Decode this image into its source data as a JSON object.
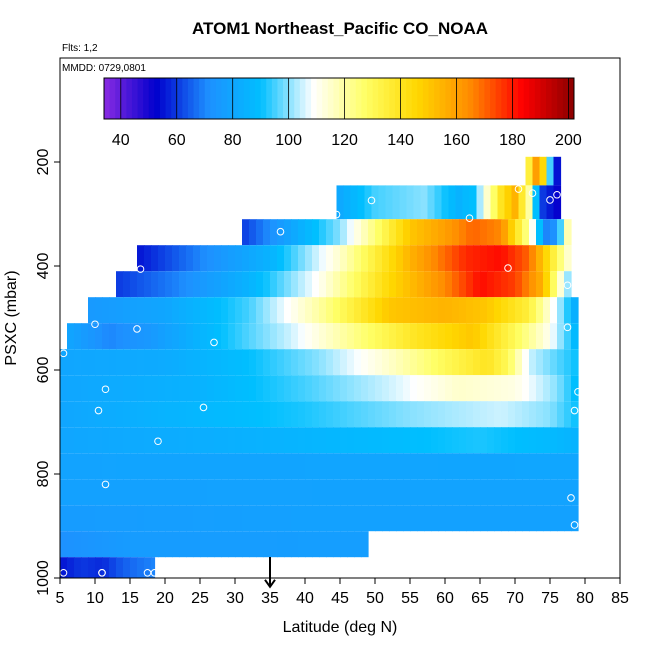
{
  "chart_data": {
    "type": "heatmap",
    "title": "ATOM1 Northeast_Pacific CO_NOAA",
    "info_flights": "Flts: 1,2",
    "info_dates": "MMDD: 0729,0801",
    "xlabel": "Latitude (deg N)",
    "ylabel": "PSXC (mbar)",
    "xlim": [
      5,
      85
    ],
    "ylim": [
      1000,
      0
    ],
    "x_ticks": [
      "5",
      "10",
      "15",
      "20",
      "25",
      "30",
      "35",
      "40",
      "45",
      "50",
      "55",
      "60",
      "65",
      "70",
      "75",
      "80",
      "85"
    ],
    "y_ticks": [
      "200",
      "400",
      "600",
      "800",
      "1000"
    ],
    "colorbar": {
      "range": [
        34,
        202
      ],
      "ticks": [
        "40",
        "60",
        "80",
        "100",
        "120",
        "140",
        "160",
        "180",
        "200"
      ],
      "colors": [
        "#8a2be2",
        "#0000cd",
        "#1e90ff",
        "#00bfff",
        "#ffffff",
        "#ffff66",
        "#ffd700",
        "#ff8c00",
        "#ff0000",
        "#8b0000"
      ]
    },
    "marker": {
      "latitude": 35,
      "pressure": 990
    },
    "rows": [
      {
        "p_top": 190,
        "p_bot": 245,
        "lat_start": 71.5,
        "lat_end": 76.5,
        "stops": [
          [
            71.5,
            120
          ],
          [
            72.5,
            150
          ],
          [
            73.5,
            170
          ],
          [
            74.5,
            120
          ],
          [
            75.5,
            70
          ],
          [
            76.5,
            40
          ]
        ]
      },
      {
        "p_top": 245,
        "p_bot": 310,
        "lat_start": 44.5,
        "lat_end": 76.5,
        "stops": [
          [
            44.5,
            80
          ],
          [
            50,
            95
          ],
          [
            57,
            100
          ],
          [
            62,
            85
          ],
          [
            64,
            90
          ],
          [
            68,
            140
          ],
          [
            70,
            155
          ],
          [
            72,
            120
          ],
          [
            74,
            60
          ],
          [
            76.5,
            50
          ]
        ]
      },
      {
        "p_top": 310,
        "p_bot": 360,
        "lat_start": 31,
        "lat_end": 78,
        "stops": [
          [
            31,
            60
          ],
          [
            38,
            80
          ],
          [
            45,
            100
          ],
          [
            50,
            125
          ],
          [
            55,
            150
          ],
          [
            60,
            160
          ],
          [
            64,
            170
          ],
          [
            68,
            165
          ],
          [
            72,
            120
          ],
          [
            75,
            60
          ],
          [
            78,
            130
          ]
        ]
      },
      {
        "p_top": 360,
        "p_bot": 410,
        "lat_start": 16,
        "lat_end": 78,
        "stops": [
          [
            16,
            55
          ],
          [
            25,
            70
          ],
          [
            35,
            85
          ],
          [
            45,
            115
          ],
          [
            55,
            155
          ],
          [
            63,
            178
          ],
          [
            68,
            182
          ],
          [
            72,
            170
          ],
          [
            75,
            140
          ],
          [
            77,
            120
          ],
          [
            78,
            110
          ]
        ]
      },
      {
        "p_top": 410,
        "p_bot": 460,
        "lat_start": 13,
        "lat_end": 78,
        "stops": [
          [
            13,
            60
          ],
          [
            22,
            70
          ],
          [
            32,
            85
          ],
          [
            42,
            110
          ],
          [
            52,
            145
          ],
          [
            60,
            165
          ],
          [
            65,
            182
          ],
          [
            70,
            175
          ],
          [
            74,
            155
          ],
          [
            76,
            120
          ],
          [
            78,
            95
          ]
        ]
      },
      {
        "p_top": 460,
        "p_bot": 510,
        "lat_start": 9,
        "lat_end": 79,
        "stops": [
          [
            9,
            75
          ],
          [
            20,
            80
          ],
          [
            32,
            95
          ],
          [
            42,
            120
          ],
          [
            52,
            150
          ],
          [
            60,
            155
          ],
          [
            66,
            150
          ],
          [
            72,
            135
          ],
          [
            76,
            105
          ],
          [
            79,
            80
          ]
        ]
      },
      {
        "p_top": 510,
        "p_bot": 560,
        "lat_start": 6,
        "lat_end": 79,
        "stops": [
          [
            6,
            80
          ],
          [
            12,
            70
          ],
          [
            18,
            75
          ],
          [
            28,
            90
          ],
          [
            38,
            105
          ],
          [
            48,
            125
          ],
          [
            56,
            140
          ],
          [
            64,
            150
          ],
          [
            70,
            130
          ],
          [
            75,
            110
          ],
          [
            79,
            85
          ]
        ]
      },
      {
        "p_top": 560,
        "p_bot": 610,
        "lat_start": 5,
        "lat_end": 79,
        "stops": [
          [
            5,
            80
          ],
          [
            20,
            82
          ],
          [
            32,
            90
          ],
          [
            42,
            100
          ],
          [
            52,
            115
          ],
          [
            60,
            130
          ],
          [
            66,
            140
          ],
          [
            69,
            130
          ],
          [
            72,
            105
          ],
          [
            79,
            90
          ]
        ]
      },
      {
        "p_top": 610,
        "p_bot": 660,
        "lat_start": 5,
        "lat_end": 79,
        "stops": [
          [
            5,
            80
          ],
          [
            25,
            85
          ],
          [
            40,
            95
          ],
          [
            52,
            105
          ],
          [
            62,
            115
          ],
          [
            70,
            112
          ],
          [
            76,
            100
          ],
          [
            79,
            88
          ]
        ]
      },
      {
        "p_top": 660,
        "p_bot": 710,
        "lat_start": 5,
        "lat_end": 79,
        "stops": [
          [
            5,
            80
          ],
          [
            22,
            86
          ],
          [
            40,
            92
          ],
          [
            55,
            100
          ],
          [
            68,
            105
          ],
          [
            75,
            100
          ],
          [
            79,
            90
          ]
        ]
      },
      {
        "p_top": 710,
        "p_bot": 760,
        "lat_start": 5,
        "lat_end": 79,
        "stops": [
          [
            5,
            80
          ],
          [
            30,
            84
          ],
          [
            50,
            88
          ],
          [
            65,
            92
          ],
          [
            75,
            88
          ],
          [
            79,
            85
          ]
        ]
      },
      {
        "p_top": 760,
        "p_bot": 810,
        "lat_start": 5,
        "lat_end": 79,
        "stops": [
          [
            5,
            79
          ],
          [
            79,
            80
          ]
        ]
      },
      {
        "p_top": 810,
        "p_bot": 860,
        "lat_start": 5,
        "lat_end": 79,
        "stops": [
          [
            5,
            78
          ],
          [
            79,
            79
          ]
        ]
      },
      {
        "p_top": 860,
        "p_bot": 910,
        "lat_start": 5,
        "lat_end": 79,
        "stops": [
          [
            5,
            76
          ],
          [
            40,
            78
          ],
          [
            79,
            78
          ]
        ]
      },
      {
        "p_top": 910,
        "p_bot": 960,
        "lat_start": 5,
        "lat_end": 49,
        "stops": [
          [
            5,
            72
          ],
          [
            15,
            76
          ],
          [
            49,
            77
          ]
        ]
      },
      {
        "p_top": 960,
        "p_bot": 1010,
        "lat_start": 5,
        "lat_end": 18.5,
        "stops": [
          [
            5,
            55
          ],
          [
            8,
            60
          ],
          [
            11,
            58
          ],
          [
            14,
            65
          ],
          [
            18.5,
            70
          ]
        ]
      }
    ],
    "points": [
      {
        "lat": 5.5,
        "p": 568
      },
      {
        "lat": 5.5,
        "p": 990
      },
      {
        "lat": 10,
        "p": 512
      },
      {
        "lat": 10.5,
        "p": 678
      },
      {
        "lat": 11,
        "p": 990
      },
      {
        "lat": 11,
        "p": 990
      },
      {
        "lat": 11.5,
        "p": 637
      },
      {
        "lat": 11.5,
        "p": 820
      },
      {
        "lat": 16,
        "p": 521
      },
      {
        "lat": 16.5,
        "p": 406
      },
      {
        "lat": 17.5,
        "p": 990
      },
      {
        "lat": 18.5,
        "p": 990
      },
      {
        "lat": 19,
        "p": 737
      },
      {
        "lat": 25.5,
        "p": 672
      },
      {
        "lat": 27,
        "p": 547
      },
      {
        "lat": 36.5,
        "p": 334
      },
      {
        "lat": 44.5,
        "p": 301
      },
      {
        "lat": 49.5,
        "p": 274
      },
      {
        "lat": 63.5,
        "p": 308
      },
      {
        "lat": 69,
        "p": 404
      },
      {
        "lat": 70.5,
        "p": 252
      },
      {
        "lat": 72.5,
        "p": 260
      },
      {
        "lat": 75,
        "p": 273
      },
      {
        "lat": 76,
        "p": 263
      },
      {
        "lat": 77.5,
        "p": 437
      },
      {
        "lat": 77.5,
        "p": 518
      },
      {
        "lat": 78,
        "p": 846
      },
      {
        "lat": 78.5,
        "p": 678
      },
      {
        "lat": 78.5,
        "p": 898
      },
      {
        "lat": 79,
        "p": 642
      }
    ]
  }
}
